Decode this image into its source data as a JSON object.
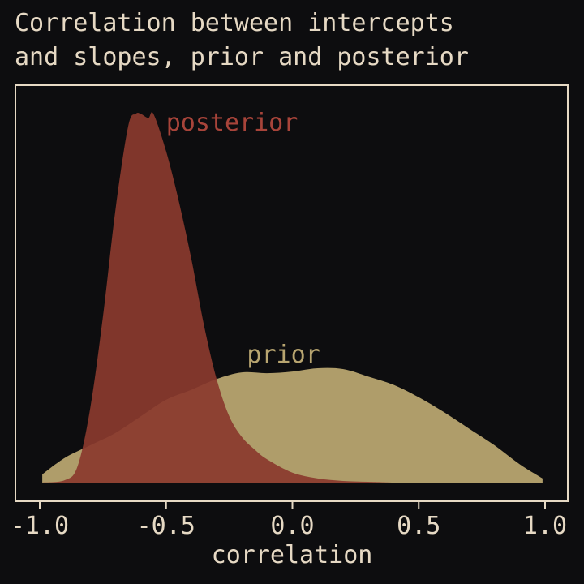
{
  "chart_data": {
    "type": "area",
    "title_line1": "Correlation between intercepts",
    "title_line2": "and slopes, prior and posterior",
    "xlabel": "correlation",
    "ylabel": "",
    "xlim": [
      -1.0,
      1.0
    ],
    "ylim": [
      0,
      4.6
    ],
    "x_ticks": [
      -1.0,
      -0.5,
      0.0,
      0.5,
      1.0
    ],
    "x_tick_labels": [
      "-1.0",
      "-0.5",
      "0.0",
      "0.5",
      "1.0"
    ],
    "y_ticks_shown": false,
    "grid": false,
    "series": [
      {
        "name": "prior",
        "color": "#b8a570",
        "opacity": 0.95,
        "x": [
          -0.99,
          -0.9,
          -0.8,
          -0.7,
          -0.6,
          -0.5,
          -0.4,
          -0.3,
          -0.2,
          -0.1,
          0.0,
          0.1,
          0.2,
          0.3,
          0.4,
          0.5,
          0.6,
          0.7,
          0.8,
          0.9,
          0.99
        ],
        "y": [
          0.1,
          0.3,
          0.45,
          0.6,
          0.8,
          1.0,
          1.12,
          1.25,
          1.33,
          1.32,
          1.34,
          1.38,
          1.37,
          1.28,
          1.18,
          1.03,
          0.85,
          0.65,
          0.45,
          0.22,
          0.05
        ]
      },
      {
        "name": "posterior",
        "color": "#8a3a2e",
        "opacity": 0.92,
        "x": [
          -0.99,
          -0.9,
          -0.85,
          -0.8,
          -0.75,
          -0.7,
          -0.65,
          -0.62,
          -0.6,
          -0.57,
          -0.55,
          -0.5,
          -0.45,
          -0.4,
          -0.35,
          -0.3,
          -0.25,
          -0.2,
          -0.15,
          -0.1,
          0.0,
          0.1,
          0.2,
          0.3,
          0.4
        ],
        "y": [
          0.0,
          0.03,
          0.2,
          0.9,
          2.0,
          3.3,
          4.3,
          4.45,
          4.45,
          4.4,
          4.45,
          4.0,
          3.4,
          2.7,
          1.9,
          1.25,
          0.8,
          0.55,
          0.4,
          0.28,
          0.12,
          0.05,
          0.02,
          0.01,
          0.0
        ]
      }
    ],
    "label_positions": {
      "posterior": [
        -0.5,
        4.25
      ],
      "prior": [
        -0.18,
        1.45
      ]
    }
  }
}
